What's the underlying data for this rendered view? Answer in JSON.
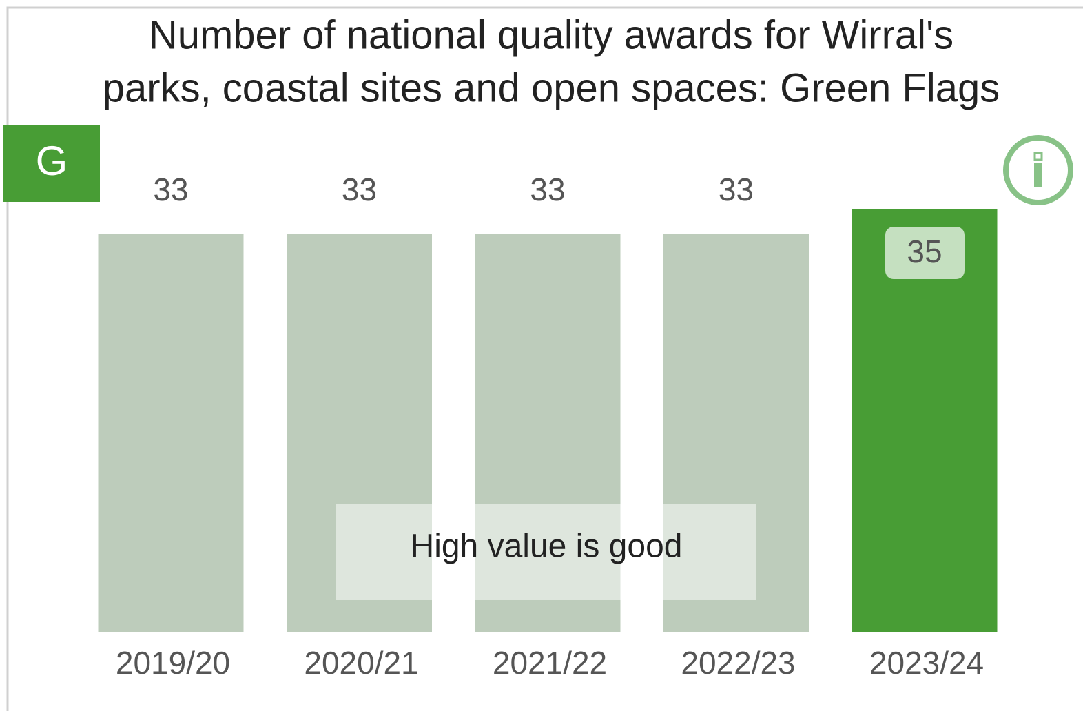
{
  "chart_data": {
    "type": "bar",
    "title": [
      "Number of national quality awards for Wirral's",
      "parks, coastal sites and open spaces: Green Flags"
    ],
    "badge": "G",
    "categories": [
      "2019/20",
      "2020/21",
      "2021/22",
      "2022/23",
      "2023/24"
    ],
    "values": [
      33,
      33,
      33,
      33,
      35
    ],
    "colors": [
      "#bdccbb",
      "#bdccbb",
      "#bdccbb",
      "#bdccbb",
      "#489d35"
    ],
    "annotation": "High value is good"
  }
}
